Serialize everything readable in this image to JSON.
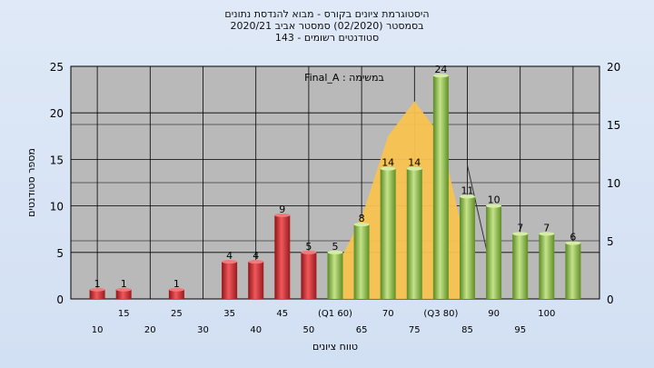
{
  "chart_data": {
    "type": "bar",
    "title_lines": [
      "היסטוגרמת ציונים בקורס - מבוא להנדסת נתונים",
      "בסמסטר  (02/2020)  סמסטר אביב 2020/21",
      "סטודנטים רשומים - 143"
    ],
    "annotation": "במשימה : Final_A",
    "ylabel": "מספר סטודנטים",
    "xlabel": "טווח ציונים",
    "ylim": [
      0,
      25
    ],
    "y_ticks": [
      0,
      5,
      10,
      15,
      20,
      25
    ],
    "y2lim": [
      0,
      20
    ],
    "y2_ticks": [
      0,
      5,
      10,
      15,
      20
    ],
    "x_tick_labels": [
      "10",
      "15",
      "20",
      "25",
      "30",
      "35",
      "40",
      "45",
      "50",
      "(Q1 60)",
      "65",
      "70",
      "75",
      "(Q3 80)",
      "85",
      "90",
      "95",
      "100"
    ],
    "bars": [
      {
        "x": 10,
        "value": 1,
        "label": "1",
        "color": "red"
      },
      {
        "x": 15,
        "value": 1,
        "label": "1",
        "color": "red"
      },
      {
        "x": 25,
        "value": 1,
        "label": "1",
        "color": "red"
      },
      {
        "x": 35,
        "value": 4,
        "label": "4",
        "color": "red"
      },
      {
        "x": 40,
        "value": 4,
        "label": "4",
        "color": "red"
      },
      {
        "x": 45,
        "value": 9,
        "label": "9",
        "color": "red"
      },
      {
        "x": 50,
        "value": 5,
        "label": "5",
        "color": "red"
      },
      {
        "x": 55,
        "value": 5,
        "label": "5",
        "color": "green"
      },
      {
        "x": 60,
        "value": 8,
        "label": "8",
        "color": "green"
      },
      {
        "x": 65,
        "value": 14,
        "label": "14",
        "color": "green"
      },
      {
        "x": 70,
        "value": 14,
        "label": "14",
        "color": "green"
      },
      {
        "x": 75,
        "value": 24,
        "label": "24",
        "color": "green"
      },
      {
        "x": 80,
        "value": 11,
        "label": "11",
        "color": "green"
      },
      {
        "x": 85,
        "value": 10,
        "label": "10",
        "color": "green"
      },
      {
        "x": 90,
        "value": 7,
        "label": "7",
        "color": "green"
      },
      {
        "x": 95,
        "value": 7,
        "label": "7",
        "color": "green"
      },
      {
        "x": 100,
        "value": 6,
        "label": "6",
        "color": "green"
      }
    ],
    "box_area": {
      "x": [
        55,
        60,
        65,
        70,
        75,
        80
      ],
      "y2": [
        2.5,
        7,
        14,
        17,
        14,
        4
      ]
    },
    "box_line": {
      "x": [
        80,
        84
      ],
      "y2": [
        11.5,
        3.5
      ]
    },
    "colors": {
      "plot_bg": "#b9b9b9",
      "red": "#d9363a",
      "green": "#8fbf4a",
      "area": "#f7c24f",
      "grid": "#000000"
    }
  }
}
